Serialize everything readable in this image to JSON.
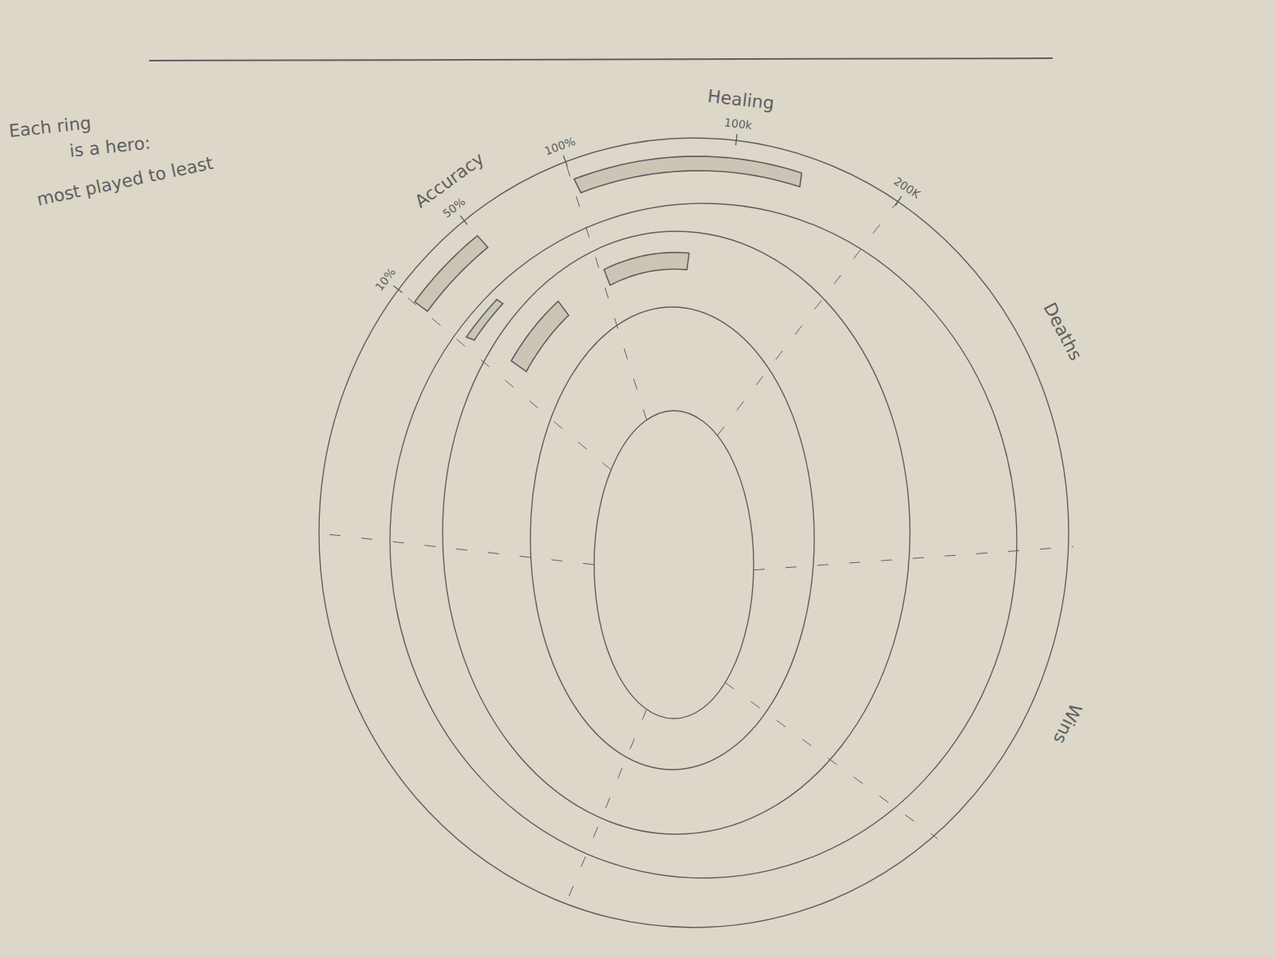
{
  "chart_data": {
    "type": "radial",
    "annotation": [
      "Each ring",
      "is a hero:",
      "most played to least"
    ],
    "categories": [
      "Accuracy",
      "Healing",
      "Deaths",
      "Wins"
    ],
    "axes": [
      {
        "lim": [
          10,
          100
        ],
        "ticks": [
          {
            "value": 10,
            "label": "10%"
          },
          {
            "value": 50,
            "label": "50%"
          },
          {
            "value": 100,
            "label": "100%"
          }
        ]
      },
      {
        "lim": [
          0,
          200000
        ],
        "ticks": [
          {
            "value": 100000,
            "label": "100k"
          },
          {
            "value": 200000,
            "label": "200K"
          }
        ]
      },
      null,
      null
    ],
    "series": [
      {
        "values": [
          50,
          140000,
          null,
          null
        ]
      },
      {
        "values": [
          35,
          null,
          null,
          null
        ]
      },
      {
        "values": [
          60,
          90000,
          null,
          null
        ]
      },
      {
        "values": [
          null,
          null,
          null,
          null
        ]
      }
    ],
    "color": "#5e5e5e"
  }
}
